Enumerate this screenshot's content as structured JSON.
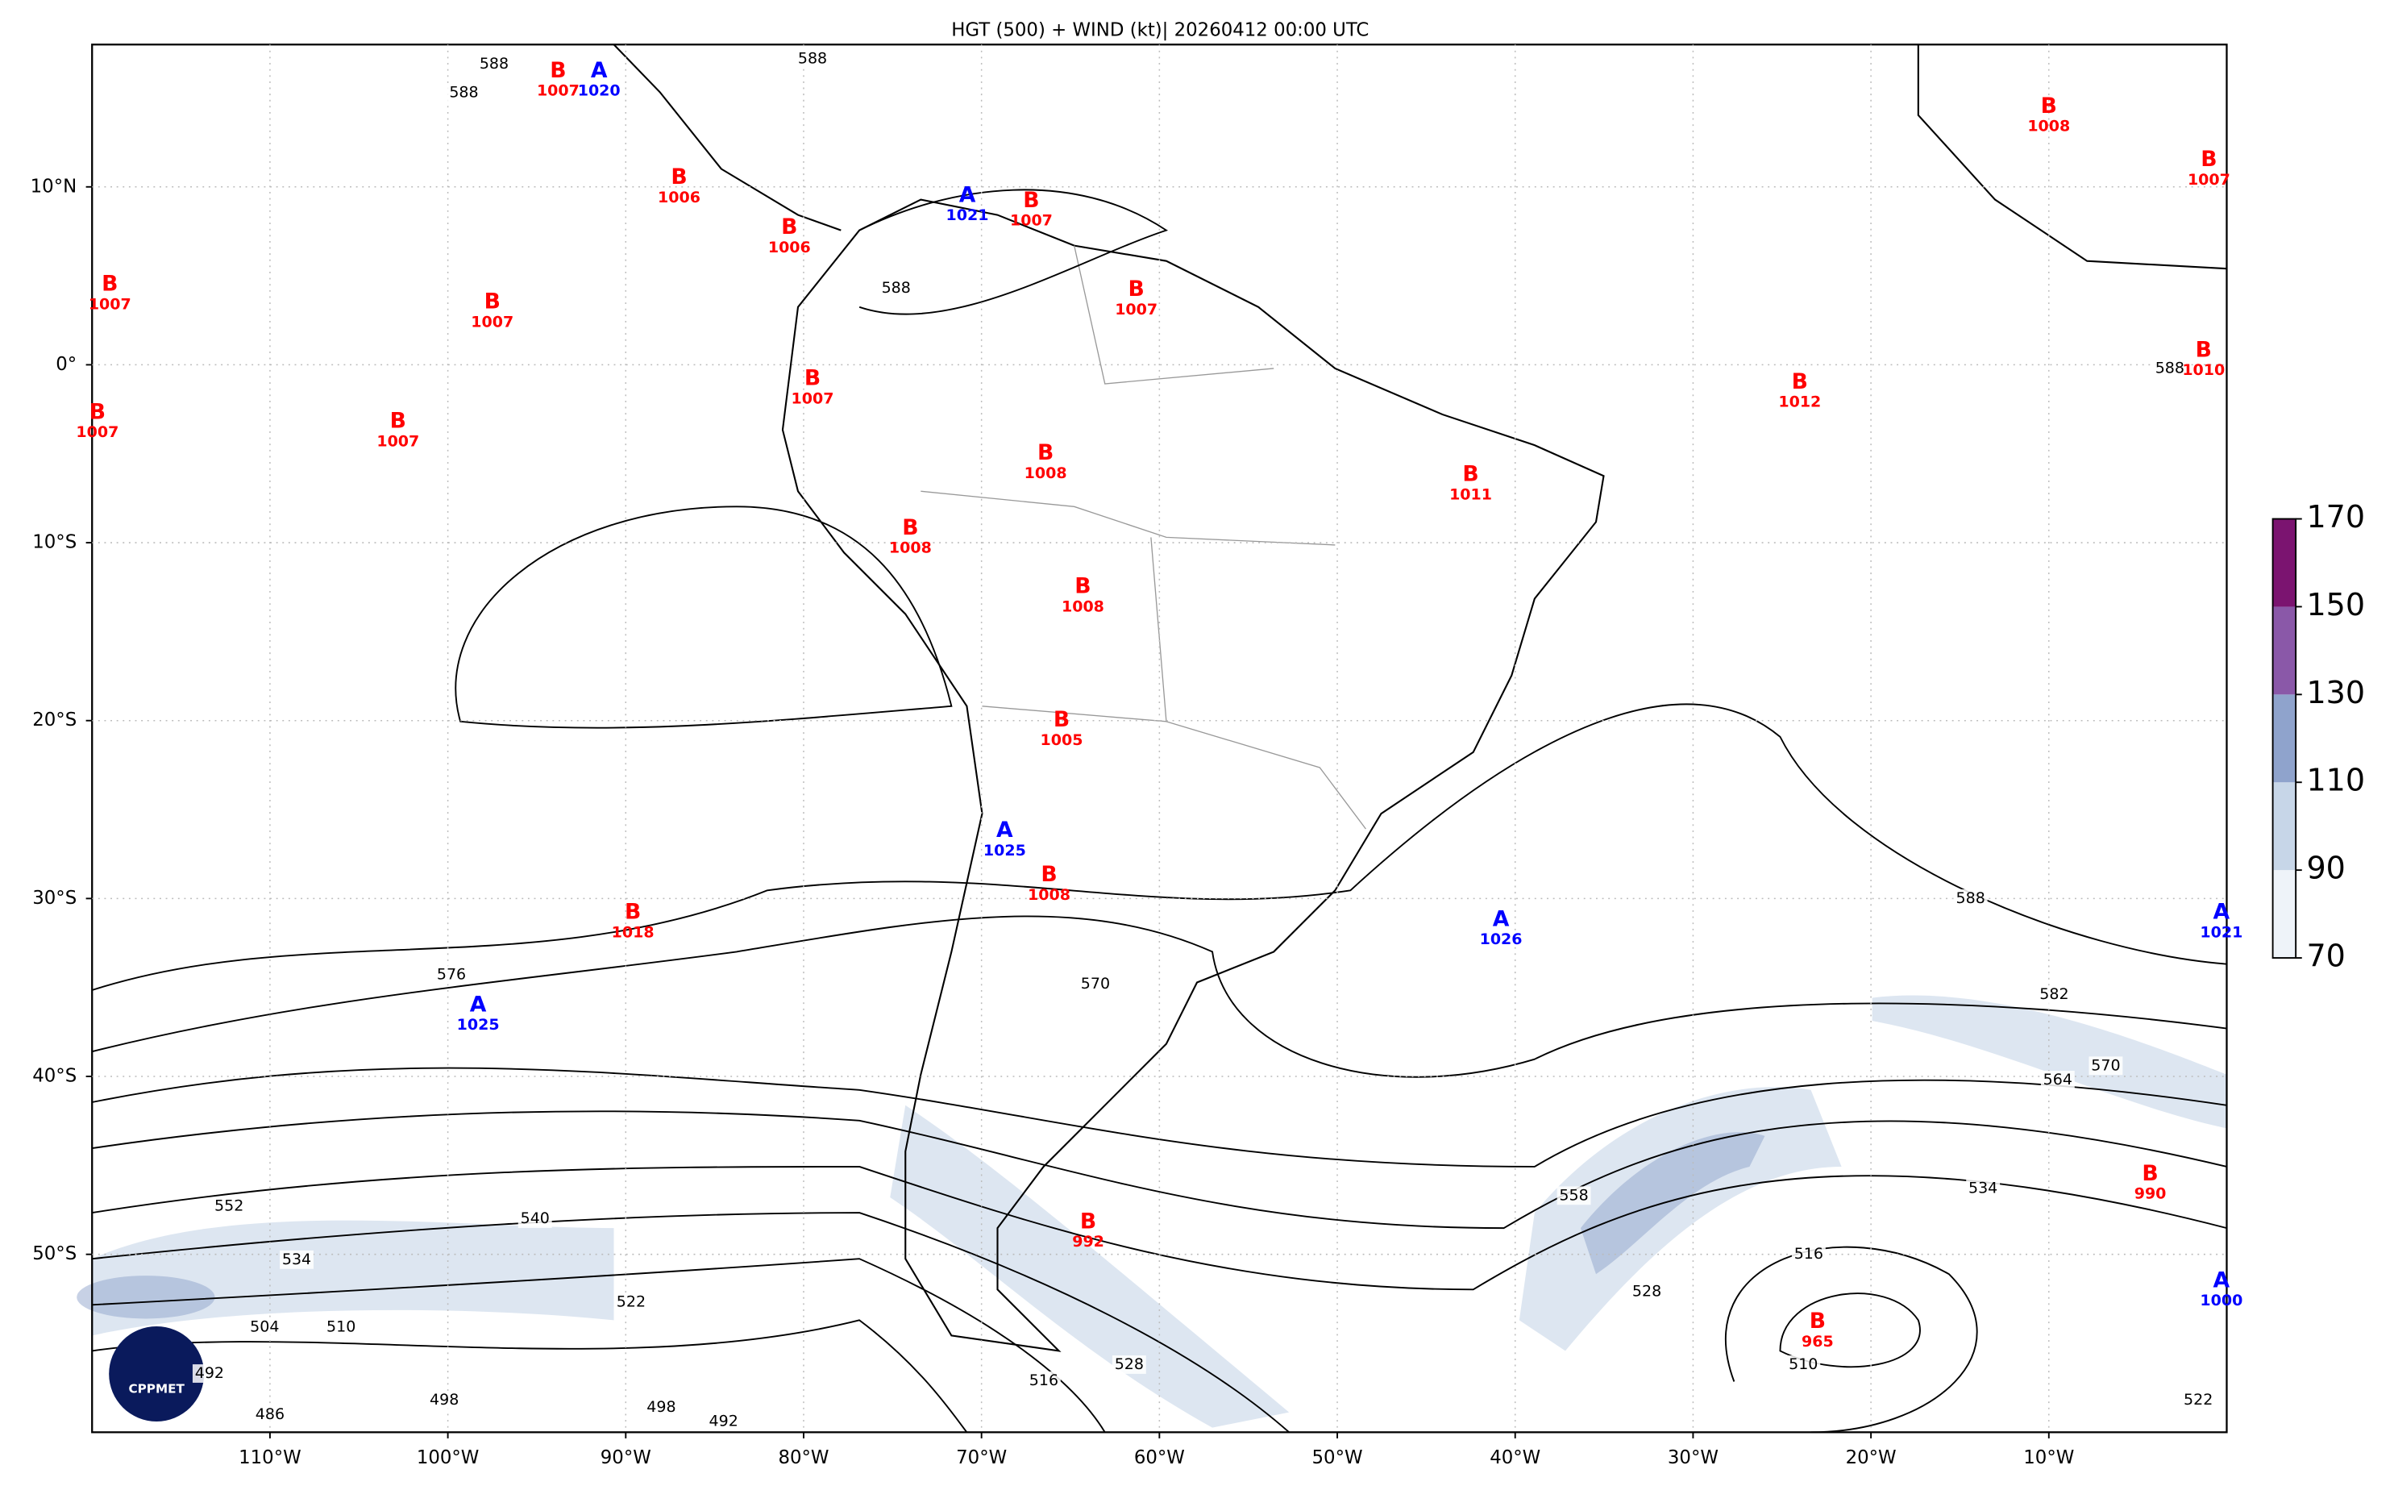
{
  "chart_data": {
    "type": "map",
    "title": "HGT (500) + WIND (kt)| 20260412 00:00 UTC",
    "xlim": [
      -120,
      0
    ],
    "ylim": [
      -60,
      18
    ],
    "xticks": [
      {
        "value": -110,
        "label": "110°W"
      },
      {
        "value": -100,
        "label": "100°W"
      },
      {
        "value": -90,
        "label": "90°W"
      },
      {
        "value": -80,
        "label": "80°W"
      },
      {
        "value": -70,
        "label": "70°W"
      },
      {
        "value": -60,
        "label": "60°W"
      },
      {
        "value": -50,
        "label": "50°W"
      },
      {
        "value": -40,
        "label": "40°W"
      },
      {
        "value": -30,
        "label": "30°W"
      },
      {
        "value": -20,
        "label": "20°W"
      },
      {
        "value": -10,
        "label": "10°W"
      }
    ],
    "yticks": [
      {
        "value": 10,
        "label": "10°N"
      },
      {
        "value": 0,
        "label": "0°"
      },
      {
        "value": -10,
        "label": "10°S"
      },
      {
        "value": -20,
        "label": "20°S"
      },
      {
        "value": -30,
        "label": "30°S"
      },
      {
        "value": -40,
        "label": "40°S"
      },
      {
        "value": -50,
        "label": "50°S"
      }
    ],
    "grid": true,
    "lows": {
      "label": "B",
      "color": "#ff0000",
      "centers": [
        {
          "value": 1007,
          "lon": -93.8,
          "lat": 16.5
        },
        {
          "value": 1006,
          "lon": -87,
          "lat": 10.5
        },
        {
          "value": 1006,
          "lon": -80.8,
          "lat": 7.7
        },
        {
          "value": 1007,
          "lon": -67.2,
          "lat": 9.2
        },
        {
          "value": 1007,
          "lon": -119,
          "lat": 4.5
        },
        {
          "value": 1007,
          "lon": -97.5,
          "lat": 3.5
        },
        {
          "value": 1007,
          "lon": -61.3,
          "lat": 4.2
        },
        {
          "value": 1007,
          "lon": -79.5,
          "lat": -0.8
        },
        {
          "value": 1007,
          "lon": -119.7,
          "lat": -2.7
        },
        {
          "value": 1007,
          "lon": -102.8,
          "lat": -3.2
        },
        {
          "value": 1008,
          "lon": -66.4,
          "lat": -5
        },
        {
          "value": 1011,
          "lon": -42.5,
          "lat": -6.2
        },
        {
          "value": 1012,
          "lon": -24,
          "lat": -1
        },
        {
          "value": 1008,
          "lon": -10,
          "lat": 14.5
        },
        {
          "value": 1007,
          "lon": -1,
          "lat": 11.5
        },
        {
          "value": 1010,
          "lon": -1.3,
          "lat": 0.8
        },
        {
          "value": 1008,
          "lon": -74,
          "lat": -9.2
        },
        {
          "value": 1008,
          "lon": -64.3,
          "lat": -12.5
        },
        {
          "value": 1005,
          "lon": -65.5,
          "lat": -20
        },
        {
          "value": 1008,
          "lon": -66.2,
          "lat": -28.7
        },
        {
          "value": 1018,
          "lon": -89.6,
          "lat": -30.8
        },
        {
          "value": 992,
          "lon": -64,
          "lat": -48.2
        },
        {
          "value": 990,
          "lon": -4.3,
          "lat": -45.5
        },
        {
          "value": 965,
          "lon": -23,
          "lat": -53.8
        }
      ]
    },
    "highs": {
      "label": "A",
      "color": "#0000ff",
      "centers": [
        {
          "value": 1020,
          "lon": -91.5,
          "lat": 16.5
        },
        {
          "value": 1021,
          "lon": -70.8,
          "lat": 9.5
        },
        {
          "value": 1025,
          "lon": -68.7,
          "lat": -26.2
        },
        {
          "value": 1026,
          "lon": -40.8,
          "lat": -31.2
        },
        {
          "value": 1021,
          "lon": -0.3,
          "lat": -30.8
        },
        {
          "value": 1025,
          "lon": -98.3,
          "lat": -36
        },
        {
          "value": 1000,
          "lon": -0.3,
          "lat": -51.5
        }
      ]
    },
    "contours": [
      {
        "value": 588,
        "lon": -97.4,
        "lat": 16.9
      },
      {
        "value": 588,
        "lon": -99.1,
        "lat": 15.3
      },
      {
        "value": 588,
        "lon": -79.5,
        "lat": 17.2
      },
      {
        "value": 588,
        "lon": -74.8,
        "lat": 4.3
      },
      {
        "value": 588,
        "lon": -14.4,
        "lat": -30
      },
      {
        "value": 588,
        "lon": -3.2,
        "lat": -0.2
      },
      {
        "value": 576,
        "lon": -99.8,
        "lat": -34.3
      },
      {
        "value": 582,
        "lon": -9.7,
        "lat": -35.4
      },
      {
        "value": 570,
        "lon": -6.8,
        "lat": -39.4
      },
      {
        "value": 564,
        "lon": -9.5,
        "lat": -40.2
      },
      {
        "value": 570,
        "lon": -63.6,
        "lat": -34.8
      },
      {
        "value": 558,
        "lon": -36.7,
        "lat": -46.7
      },
      {
        "value": 552,
        "lon": -112.3,
        "lat": -47.3
      },
      {
        "value": 540,
        "lon": -95.1,
        "lat": -48
      },
      {
        "value": 534,
        "lon": -108.5,
        "lat": -50.3
      },
      {
        "value": 534,
        "lon": -13.7,
        "lat": -46.3
      },
      {
        "value": 522,
        "lon": -89.7,
        "lat": -52.7
      },
      {
        "value": 516,
        "lon": -23.5,
        "lat": -50
      },
      {
        "value": 528,
        "lon": -32.6,
        "lat": -52.1
      },
      {
        "value": 510,
        "lon": -106,
        "lat": -54.1
      },
      {
        "value": 504,
        "lon": -110.3,
        "lat": -54.1
      },
      {
        "value": 492,
        "lon": -113.4,
        "lat": -56.7
      },
      {
        "value": 486,
        "lon": -110,
        "lat": -59
      },
      {
        "value": 498,
        "lon": -100.2,
        "lat": -58.2
      },
      {
        "value": 498,
        "lon": -88,
        "lat": -58.6
      },
      {
        "value": 492,
        "lon": -84.5,
        "lat": -59.4
      },
      {
        "value": 516,
        "lon": -66.5,
        "lat": -57.1
      },
      {
        "value": 528,
        "lon": -61.7,
        "lat": -56.2
      },
      {
        "value": 510,
        "lon": -23.8,
        "lat": -56.2
      },
      {
        "value": 522,
        "lon": -1.6,
        "lat": -58.2
      }
    ],
    "colorbar": {
      "ylim": [
        70,
        170
      ],
      "yticks": [
        70,
        90,
        110,
        130,
        150,
        170
      ],
      "colors": [
        "#eef3f9",
        "#c7d6e8",
        "#8fa3cc",
        "#8a58a8",
        "#7b1470"
      ]
    },
    "logo": "CPPMET"
  }
}
